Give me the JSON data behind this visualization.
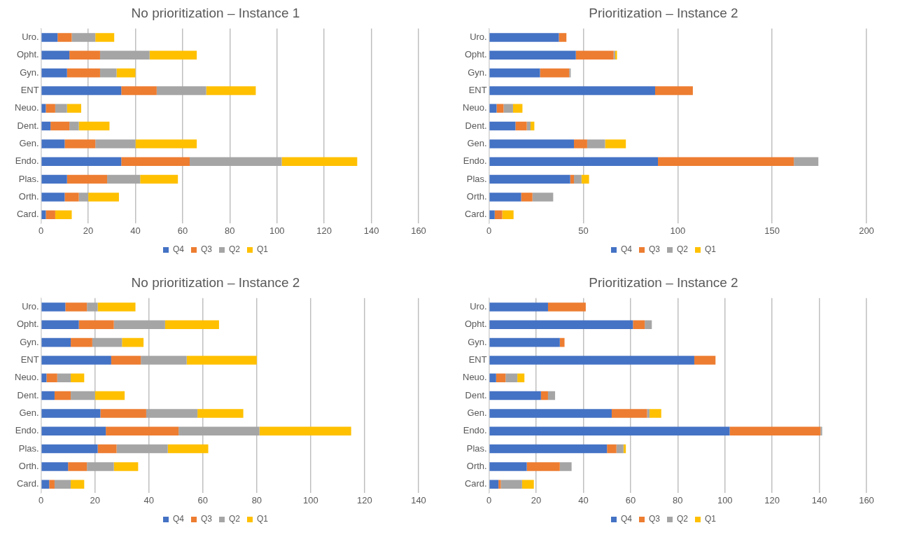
{
  "chart_data": [
    {
      "type": "bar",
      "title": "No prioritization – Instance 1",
      "orientation": "horizontal",
      "stacked": true,
      "grid": "x",
      "legend": "bottom",
      "categories": [
        "Uro.",
        "Opht.",
        "Gyn.",
        "ENT",
        "Neuo.",
        "Dent.",
        "Gen.",
        "Endo.",
        "Plas.",
        "Orth.",
        "Card."
      ],
      "xlim": [
        0,
        160
      ],
      "xticks": [
        0,
        20,
        40,
        60,
        80,
        100,
        120,
        140,
        160
      ],
      "series": [
        {
          "name": "Q4",
          "color": "#4472c4",
          "values": [
            7,
            12,
            11,
            34,
            2,
            4,
            10,
            34,
            11,
            10,
            2
          ]
        },
        {
          "name": "Q3",
          "color": "#ed7d31",
          "values": [
            6,
            13,
            14,
            15,
            4,
            8,
            13,
            29,
            17,
            6,
            4
          ]
        },
        {
          "name": "Q2",
          "color": "#a5a5a5",
          "values": [
            10,
            21,
            7,
            21,
            5,
            4,
            17,
            39,
            14,
            4,
            0
          ]
        },
        {
          "name": "Q1",
          "color": "#ffc000",
          "values": [
            8,
            20,
            8,
            21,
            6,
            13,
            26,
            32,
            16,
            13,
            7
          ]
        }
      ]
    },
    {
      "type": "bar",
      "title": "Prioritization – Instance 2",
      "orientation": "horizontal",
      "stacked": true,
      "grid": "x",
      "legend": "bottom",
      "categories": [
        "Uro.",
        "Opht.",
        "Gyn.",
        "ENT",
        "Neuo.",
        "Dent.",
        "Gen.",
        "Endo.",
        "Plas.",
        "Orth.",
        "Card."
      ],
      "xlim": [
        0,
        200
      ],
      "xticks": [
        0,
        50,
        100,
        150,
        200
      ],
      "series": [
        {
          "name": "Q4",
          "color": "#4472c4",
          "values": [
            37,
            46,
            27,
            88,
            4,
            14,
            45,
            89.5,
            43,
            17,
            3
          ]
        },
        {
          "name": "Q3",
          "color": "#ed7d31",
          "values": [
            4,
            20,
            15.5,
            20,
            3.7,
            6,
            7,
            72,
            2,
            6,
            4
          ]
        },
        {
          "name": "Q2",
          "color": "#a5a5a5",
          "values": [
            0,
            0.8,
            0.8,
            0,
            5,
            2,
            9.5,
            13,
            4,
            11,
            0
          ]
        },
        {
          "name": "Q1",
          "color": "#ffc000",
          "values": [
            0,
            1,
            0,
            0,
            5,
            2,
            11,
            0,
            4,
            0,
            6
          ]
        }
      ]
    },
    {
      "type": "bar",
      "title": "No prioritization – Instance 2",
      "orientation": "horizontal",
      "stacked": true,
      "grid": "x",
      "legend": "bottom",
      "categories": [
        "Uro.",
        "Opht.",
        "Gyn.",
        "ENT",
        "Neuo.",
        "Dent.",
        "Gen.",
        "Endo.",
        "Plas.",
        "Orth.",
        "Card."
      ],
      "xlim": [
        0,
        140
      ],
      "xticks": [
        0,
        20,
        40,
        60,
        80,
        100,
        120,
        140
      ],
      "series": [
        {
          "name": "Q4",
          "color": "#4472c4",
          "values": [
            9,
            14,
            11,
            26,
            2,
            5,
            22,
            24,
            21,
            10,
            3
          ]
        },
        {
          "name": "Q3",
          "color": "#ed7d31",
          "values": [
            8,
            13,
            8,
            11,
            4,
            6,
            17,
            27,
            7,
            7,
            2
          ]
        },
        {
          "name": "Q2",
          "color": "#a5a5a5",
          "values": [
            4,
            19,
            11,
            17,
            5,
            9,
            19,
            30,
            19,
            10,
            6
          ]
        },
        {
          "name": "Q1",
          "color": "#ffc000",
          "values": [
            14,
            20,
            8,
            26,
            5,
            11,
            17,
            34,
            15,
            9,
            5
          ]
        }
      ]
    },
    {
      "type": "bar",
      "title": "Prioritization – Instance 2",
      "orientation": "horizontal",
      "stacked": true,
      "grid": "x",
      "legend": "bottom",
      "categories": [
        "Uro.",
        "Opht.",
        "Gyn.",
        "ENT",
        "Neuo.",
        "Dent.",
        "Gen.",
        "Endo.",
        "Plas.",
        "Orth.",
        "Card."
      ],
      "xlim": [
        0,
        160
      ],
      "xticks": [
        0,
        20,
        40,
        60,
        80,
        100,
        120,
        140,
        160
      ],
      "series": [
        {
          "name": "Q4",
          "color": "#4472c4",
          "values": [
            25,
            61,
            30,
            87,
            3,
            22,
            52,
            102,
            50,
            16,
            4
          ]
        },
        {
          "name": "Q3",
          "color": "#ed7d31",
          "values": [
            16,
            5,
            2,
            9,
            4,
            3,
            15,
            38.5,
            4,
            14,
            1
          ]
        },
        {
          "name": "Q2",
          "color": "#a5a5a5",
          "values": [
            0,
            3,
            0,
            0,
            5,
            3,
            1,
            0.7,
            3,
            5,
            9
          ]
        },
        {
          "name": "Q1",
          "color": "#ffc000",
          "values": [
            0,
            0,
            0,
            0,
            3,
            0,
            5,
            0,
            1,
            0,
            5
          ]
        }
      ]
    }
  ]
}
